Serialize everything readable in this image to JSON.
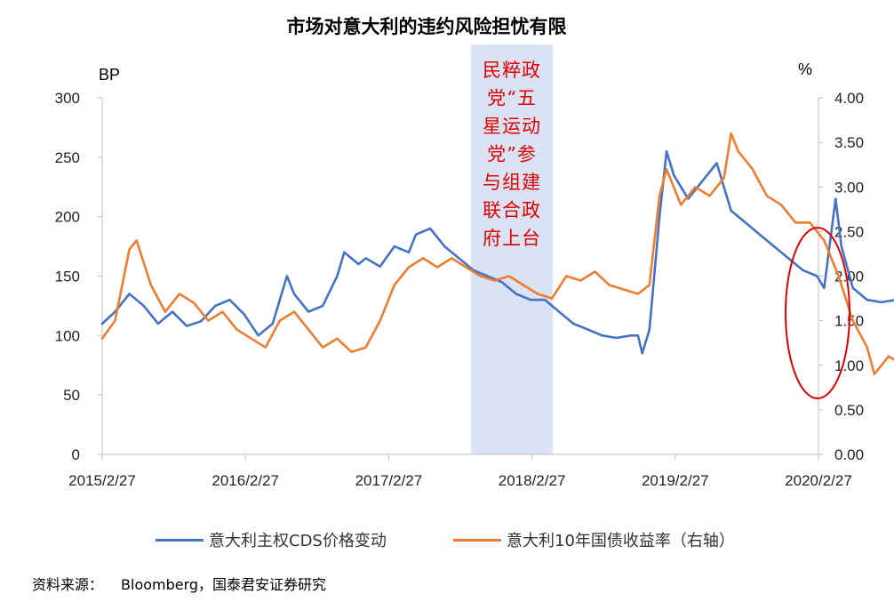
{
  "title": "市场对意大利的违约风险担忧有限",
  "source": {
    "label": "资料来源：",
    "text": "Bloomberg，国泰君安证券研究"
  },
  "colors": {
    "cds": "#4472C4",
    "yield": "#ED7D31",
    "band": "#DAE3F3",
    "circle": "#E00000",
    "annotation": "#E00000"
  },
  "chart_data": {
    "type": "line",
    "y_left": {
      "unit": "BP",
      "range": [
        0,
        300
      ],
      "ticks": [
        "0",
        "50",
        "100",
        "150",
        "200",
        "250",
        "300"
      ]
    },
    "y_right": {
      "unit": "%",
      "range": [
        0,
        4.0
      ],
      "ticks": [
        "0.00",
        "0.50",
        "1.00",
        "1.50",
        "2.00",
        "2.50",
        "3.00",
        "3.50",
        "4.00"
      ]
    },
    "x_ticks": [
      "2015/2/27",
      "2016/2/27",
      "2017/2/27",
      "2018/2/27",
      "2019/2/27",
      "2020/2/27"
    ],
    "annotation": {
      "text_lines": [
        "民粹政",
        "党“五",
        "星运动",
        "党”参",
        "与组建",
        "联合政",
        "府上台"
      ]
    },
    "series": [
      {
        "name": "意大利主权CDS价格变动",
        "axis": "left",
        "points": [
          [
            2015.16,
            110
          ],
          [
            2015.25,
            120
          ],
          [
            2015.35,
            135
          ],
          [
            2015.45,
            125
          ],
          [
            2015.55,
            110
          ],
          [
            2015.65,
            120
          ],
          [
            2015.75,
            108
          ],
          [
            2015.85,
            112
          ],
          [
            2015.95,
            125
          ],
          [
            2016.05,
            130
          ],
          [
            2016.15,
            118
          ],
          [
            2016.25,
            100
          ],
          [
            2016.35,
            110
          ],
          [
            2016.45,
            150
          ],
          [
            2016.5,
            135
          ],
          [
            2016.6,
            120
          ],
          [
            2016.7,
            125
          ],
          [
            2016.8,
            150
          ],
          [
            2016.85,
            170
          ],
          [
            2016.95,
            160
          ],
          [
            2017.0,
            165
          ],
          [
            2017.1,
            158
          ],
          [
            2017.2,
            175
          ],
          [
            2017.3,
            170
          ],
          [
            2017.35,
            185
          ],
          [
            2017.45,
            190
          ],
          [
            2017.55,
            175
          ],
          [
            2017.65,
            165
          ],
          [
            2017.75,
            155
          ],
          [
            2017.85,
            150
          ],
          [
            2017.95,
            145
          ],
          [
            2018.05,
            135
          ],
          [
            2018.15,
            130
          ],
          [
            2018.25,
            130
          ],
          [
            2018.35,
            120
          ],
          [
            2018.45,
            110
          ],
          [
            2018.55,
            105
          ],
          [
            2018.65,
            100
          ],
          [
            2018.75,
            98
          ],
          [
            2018.85,
            100
          ],
          [
            2018.9,
            100
          ],
          [
            2018.93,
            85
          ],
          [
            2018.98,
            105
          ],
          [
            2019.05,
            200
          ],
          [
            2019.1,
            255
          ],
          [
            2019.15,
            235
          ],
          [
            2019.25,
            215
          ],
          [
            2019.35,
            230
          ],
          [
            2019.45,
            245
          ],
          [
            2019.55,
            205
          ],
          [
            2019.65,
            195
          ],
          [
            2019.75,
            185
          ],
          [
            2019.85,
            175
          ],
          [
            2019.95,
            165
          ],
          [
            2020.05,
            155
          ],
          [
            2020.15,
            150
          ],
          [
            2020.2,
            140
          ],
          [
            2020.28,
            215
          ],
          [
            2020.32,
            175
          ],
          [
            2020.4,
            140
          ],
          [
            2020.5,
            130
          ],
          [
            2020.6,
            128
          ],
          [
            2020.7,
            130
          ],
          [
            2020.8,
            125
          ],
          [
            2020.9,
            120
          ],
          [
            2020.97,
            100
          ],
          [
            2021.03,
            115
          ],
          [
            2021.08,
            165
          ]
        ]
      },
      {
        "name": "意大利10年国债收益率（右轴）",
        "axis": "right",
        "points": [
          [
            2015.16,
            1.3
          ],
          [
            2015.25,
            1.5
          ],
          [
            2015.35,
            2.3
          ],
          [
            2015.4,
            2.4
          ],
          [
            2015.5,
            1.9
          ],
          [
            2015.6,
            1.6
          ],
          [
            2015.7,
            1.8
          ],
          [
            2015.8,
            1.7
          ],
          [
            2015.9,
            1.5
          ],
          [
            2016.0,
            1.6
          ],
          [
            2016.1,
            1.4
          ],
          [
            2016.2,
            1.3
          ],
          [
            2016.3,
            1.2
          ],
          [
            2016.4,
            1.5
          ],
          [
            2016.5,
            1.6
          ],
          [
            2016.6,
            1.4
          ],
          [
            2016.7,
            1.2
          ],
          [
            2016.8,
            1.3
          ],
          [
            2016.9,
            1.15
          ],
          [
            2017.0,
            1.2
          ],
          [
            2017.1,
            1.5
          ],
          [
            2017.2,
            1.9
          ],
          [
            2017.3,
            2.1
          ],
          [
            2017.4,
            2.2
          ],
          [
            2017.5,
            2.1
          ],
          [
            2017.6,
            2.2
          ],
          [
            2017.7,
            2.1
          ],
          [
            2017.8,
            2.0
          ],
          [
            2017.9,
            1.95
          ],
          [
            2018.0,
            2.0
          ],
          [
            2018.1,
            1.9
          ],
          [
            2018.2,
            1.8
          ],
          [
            2018.3,
            1.75
          ],
          [
            2018.4,
            2.0
          ],
          [
            2018.5,
            1.95
          ],
          [
            2018.6,
            2.05
          ],
          [
            2018.7,
            1.9
          ],
          [
            2018.8,
            1.85
          ],
          [
            2018.9,
            1.8
          ],
          [
            2018.98,
            1.9
          ],
          [
            2019.05,
            2.9
          ],
          [
            2019.1,
            3.2
          ],
          [
            2019.2,
            2.8
          ],
          [
            2019.3,
            3.0
          ],
          [
            2019.4,
            2.9
          ],
          [
            2019.5,
            3.1
          ],
          [
            2019.55,
            3.6
          ],
          [
            2019.6,
            3.4
          ],
          [
            2019.7,
            3.2
          ],
          [
            2019.8,
            2.9
          ],
          [
            2019.9,
            2.8
          ],
          [
            2020.0,
            2.6
          ],
          [
            2020.1,
            2.6
          ],
          [
            2020.2,
            2.4
          ],
          [
            2020.3,
            2.0
          ],
          [
            2020.4,
            1.5
          ],
          [
            2020.5,
            1.2
          ],
          [
            2020.55,
            0.9
          ],
          [
            2020.65,
            1.1
          ],
          [
            2020.75,
            1.0
          ],
          [
            2020.85,
            1.2
          ],
          [
            2020.92,
            1.4
          ],
          [
            2021.0,
            1.35
          ],
          [
            2021.05,
            0.95
          ],
          [
            2021.08,
            1.1
          ]
        ]
      }
    ]
  }
}
